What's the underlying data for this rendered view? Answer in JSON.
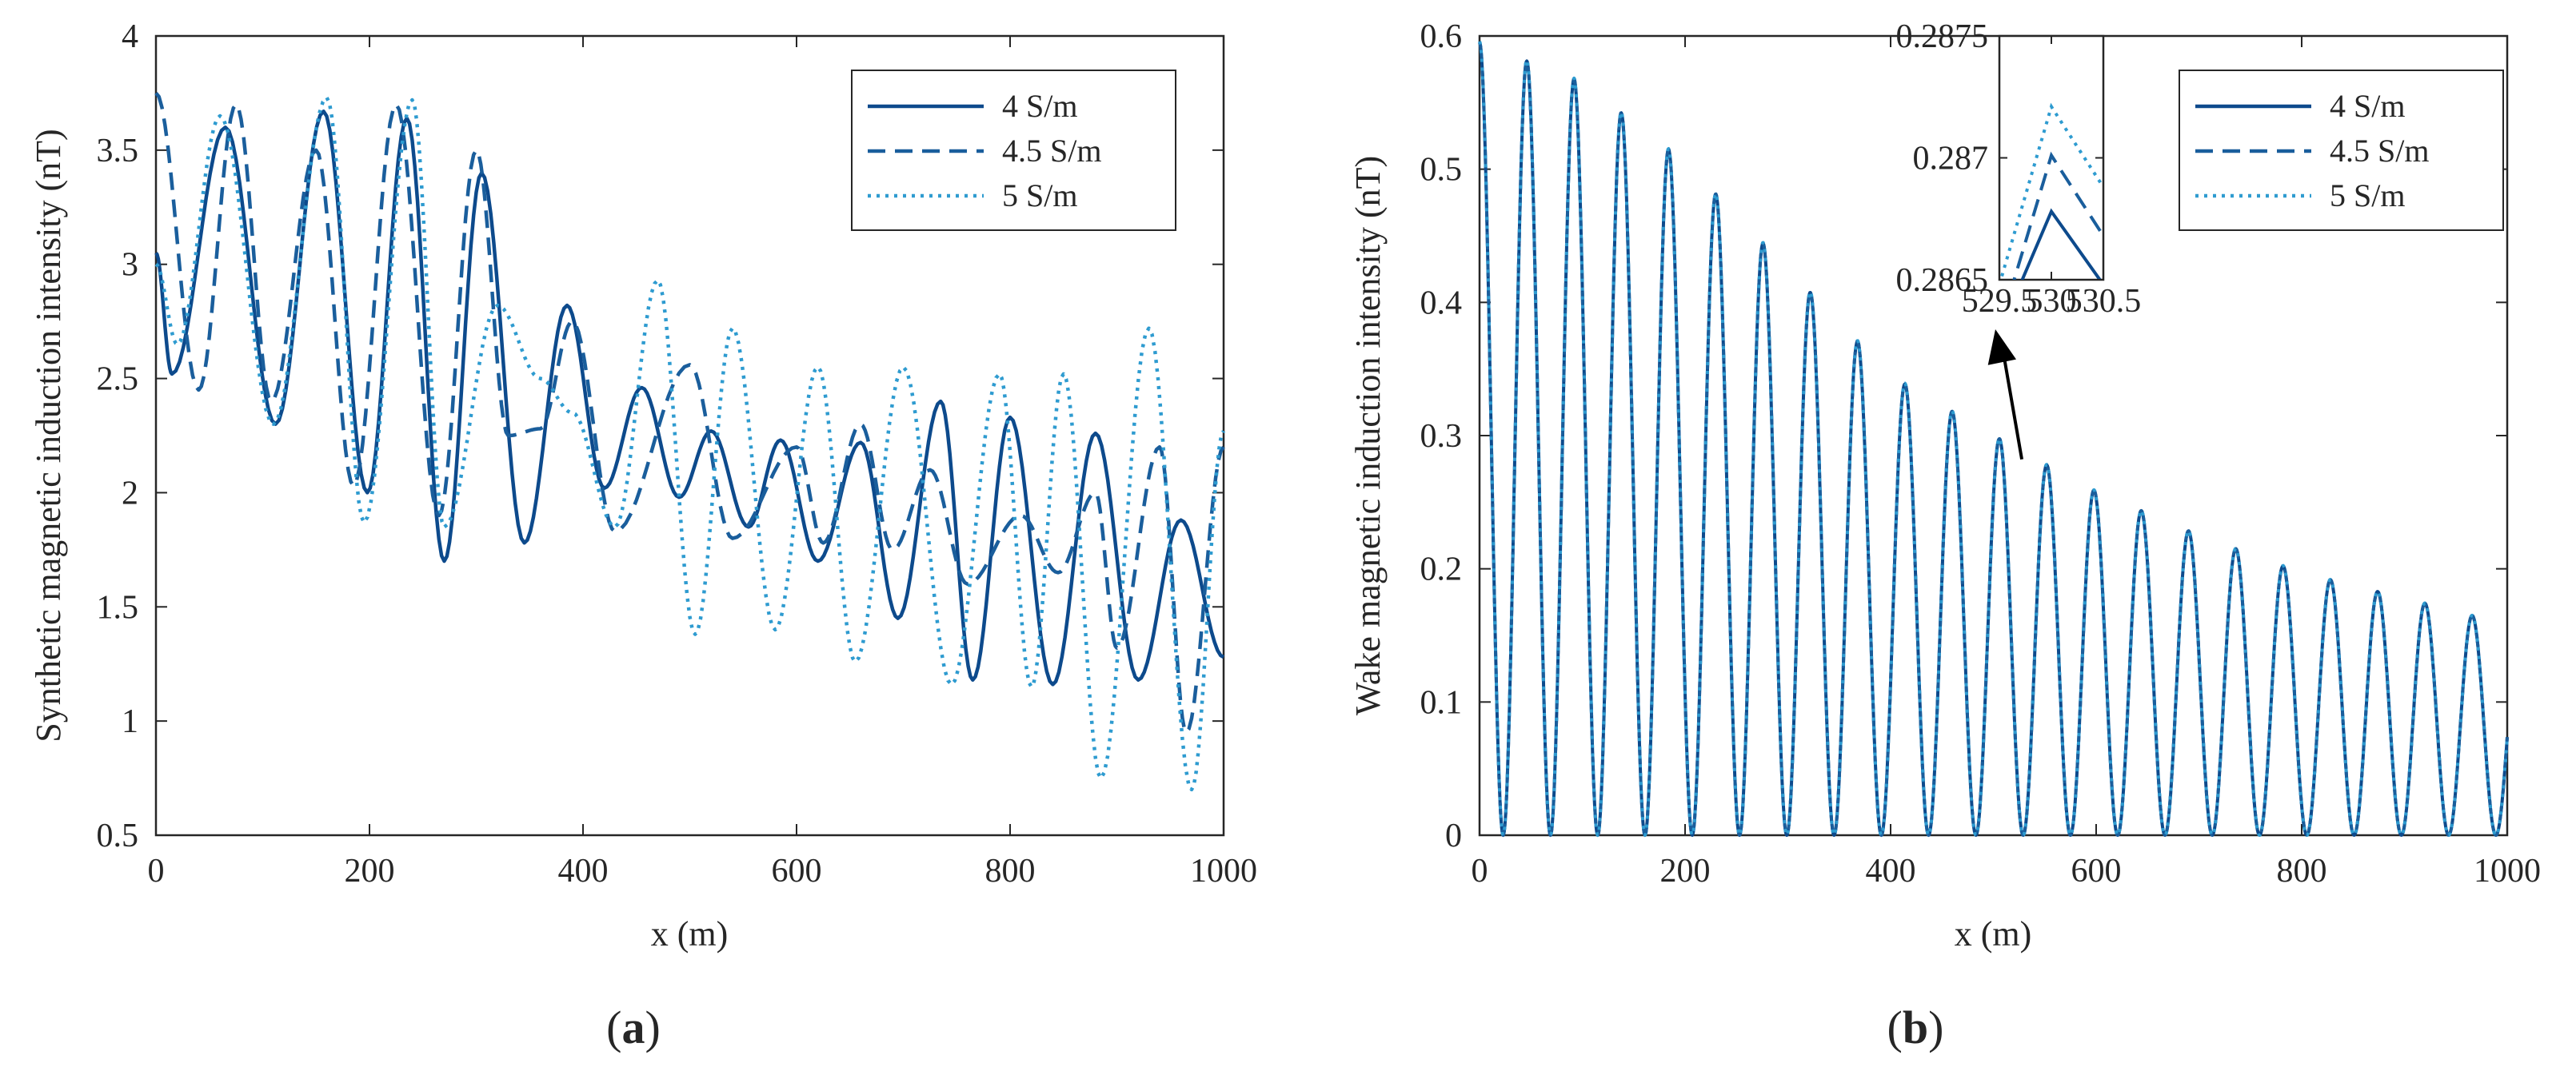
{
  "colors": {
    "s4": "#0d4a8c",
    "s45": "#1a5e9c",
    "s5": "#2e9bd0",
    "axis": "#262626",
    "arrow": "#000000"
  },
  "panels": {
    "a": {
      "label_letter": "a",
      "label_open": "(",
      "label_close": ")"
    },
    "b": {
      "label_letter": "b",
      "label_open": "(",
      "label_close": ")"
    }
  },
  "chart_data": [
    {
      "id": "a",
      "type": "line",
      "title": "",
      "xlabel": "x (m)",
      "ylabel": "Synthetic magnetic induction intensity (nT)",
      "xlim": [
        0,
        1000
      ],
      "ylim": [
        0.5,
        4
      ],
      "xticks": [
        0,
        200,
        400,
        600,
        800,
        1000
      ],
      "xtick_labels": [
        "0",
        "200",
        "400",
        "600",
        "800",
        "1000"
      ],
      "yticks": [
        0.5,
        1,
        1.5,
        2,
        2.5,
        3,
        3.5,
        4
      ],
      "ytick_labels": [
        "0.5",
        "1",
        "1.5",
        "2",
        "2.5",
        "3",
        "3.5",
        "4"
      ],
      "legend_position": "top-right",
      "series": [
        {
          "name": "4 S/m",
          "style": "solid",
          "color_key": "s4",
          "extrema": [
            [
              0,
              3.05
            ],
            [
              15,
              2.52
            ],
            [
              65,
              3.6
            ],
            [
              112,
              2.3
            ],
            [
              157,
              3.67
            ],
            [
              198,
              2.0
            ],
            [
              235,
              3.64
            ],
            [
              270,
              1.7
            ],
            [
              305,
              3.4
            ],
            [
              345,
              1.78
            ],
            [
              385,
              2.82
            ],
            [
              420,
              2.02
            ],
            [
              455,
              2.46
            ],
            [
              490,
              1.98
            ],
            [
              520,
              2.27
            ],
            [
              555,
              1.85
            ],
            [
              585,
              2.23
            ],
            [
              620,
              1.7
            ],
            [
              660,
              2.22
            ],
            [
              695,
              1.45
            ],
            [
              735,
              2.4
            ],
            [
              765,
              1.18
            ],
            [
              800,
              2.33
            ],
            [
              840,
              1.16
            ],
            [
              880,
              2.26
            ],
            [
              920,
              1.18
            ],
            [
              960,
              1.88
            ],
            [
              1000,
              1.28
            ]
          ]
        },
        {
          "name": "4.5 S/m",
          "style": "dashed",
          "color_key": "s45",
          "extrema": [
            [
              0,
              3.75
            ],
            [
              40,
              2.45
            ],
            [
              75,
              3.7
            ],
            [
              108,
              2.4
            ],
            [
              150,
              3.5
            ],
            [
              185,
              2.03
            ],
            [
              225,
              3.7
            ],
            [
              265,
              1.9
            ],
            [
              300,
              3.5
            ],
            [
              330,
              2.25
            ],
            [
              360,
              2.28
            ],
            [
              390,
              2.75
            ],
            [
              430,
              1.83
            ],
            [
              500,
              2.56
            ],
            [
              540,
              1.8
            ],
            [
              600,
              2.2
            ],
            [
              625,
              1.78
            ],
            [
              660,
              2.3
            ],
            [
              690,
              1.75
            ],
            [
              725,
              2.1
            ],
            [
              760,
              1.6
            ],
            [
              810,
              1.9
            ],
            [
              845,
              1.65
            ],
            [
              880,
              2.0
            ],
            [
              900,
              1.32
            ],
            [
              940,
              2.2
            ],
            [
              965,
              0.95
            ],
            [
              1000,
              2.2
            ]
          ]
        },
        {
          "name": "5 S/m",
          "style": "dotted",
          "color_key": "s5",
          "extrema": [
            [
              0,
              3.0
            ],
            [
              20,
              2.65
            ],
            [
              60,
              3.65
            ],
            [
              110,
              2.3
            ],
            [
              160,
              3.73
            ],
            [
              195,
              1.87
            ],
            [
              240,
              3.72
            ],
            [
              270,
              1.85
            ],
            [
              320,
              2.82
            ],
            [
              360,
              2.5
            ],
            [
              390,
              2.35
            ],
            [
              430,
              1.85
            ],
            [
              470,
              2.93
            ],
            [
              505,
              1.38
            ],
            [
              540,
              2.72
            ],
            [
              580,
              1.4
            ],
            [
              620,
              2.55
            ],
            [
              655,
              1.26
            ],
            [
              700,
              2.55
            ],
            [
              745,
              1.16
            ],
            [
              790,
              2.52
            ],
            [
              820,
              1.15
            ],
            [
              850,
              2.52
            ],
            [
              885,
              0.75
            ],
            [
              930,
              2.72
            ],
            [
              970,
              0.7
            ],
            [
              1000,
              2.27
            ]
          ]
        }
      ]
    },
    {
      "id": "b",
      "type": "line",
      "title": "",
      "xlabel": "x (m)",
      "ylabel": "Wake magnetic induction intensity (nT)",
      "xlim": [
        0,
        1000
      ],
      "ylim": [
        0,
        0.6
      ],
      "xticks": [
        0,
        200,
        400,
        600,
        800,
        1000
      ],
      "xtick_labels": [
        "0",
        "200",
        "400",
        "600",
        "800",
        "1000"
      ],
      "yticks": [
        0,
        0.1,
        0.2,
        0.3,
        0.4,
        0.5,
        0.6
      ],
      "ytick_labels": [
        "0",
        "0.1",
        "0.2",
        "0.3",
        "0.4",
        "0.5",
        "0.6"
      ],
      "legend_position": "top-right",
      "oscillation_period": 46,
      "envelope": [
        [
          0,
          0.595
        ],
        [
          100,
          0.565
        ],
        [
          200,
          0.505
        ],
        [
          300,
          0.425
        ],
        [
          400,
          0.345
        ],
        [
          500,
          0.3
        ],
        [
          530,
          0.287
        ],
        [
          600,
          0.258
        ],
        [
          700,
          0.225
        ],
        [
          800,
          0.197
        ],
        [
          900,
          0.178
        ],
        [
          1000,
          0.158
        ]
      ],
      "series": [
        {
          "name": "4 S/m",
          "style": "solid",
          "color_key": "s4"
        },
        {
          "name": "4.5 S/m",
          "style": "dashed",
          "color_key": "s45"
        },
        {
          "name": "5 S/m",
          "style": "dotted",
          "color_key": "s5"
        }
      ],
      "inset": {
        "xlim": [
          529.5,
          530.5
        ],
        "ylim": [
          0.2865,
          0.2875
        ],
        "xticks": [
          529.5,
          530,
          530.5
        ],
        "xtick_labels": [
          "529.5",
          "530",
          "530.5"
        ],
        "yticks": [
          0.2865,
          0.287,
          0.2875
        ],
        "ytick_labels": [
          "0.2865",
          "0.287",
          "0.2875"
        ],
        "lines": [
          {
            "color_key": "s4",
            "style": "solid",
            "points": [
              [
                529.7,
                0.28648
              ],
              [
                530,
                0.28678
              ],
              [
                530.5,
                0.28648
              ]
            ]
          },
          {
            "color_key": "s45",
            "style": "dashed",
            "points": [
              [
                529.6,
                0.28644
              ],
              [
                530,
                0.28701
              ],
              [
                530.5,
                0.28668
              ]
            ]
          },
          {
            "color_key": "s5",
            "style": "dotted",
            "points": [
              [
                529.5,
                0.28648
              ],
              [
                530,
                0.28721
              ],
              [
                530.5,
                0.28688
              ]
            ]
          }
        ],
        "arrow_from": [
          530,
          0.287
        ],
        "points_to_main": [
          530,
          0.287
        ]
      }
    }
  ]
}
